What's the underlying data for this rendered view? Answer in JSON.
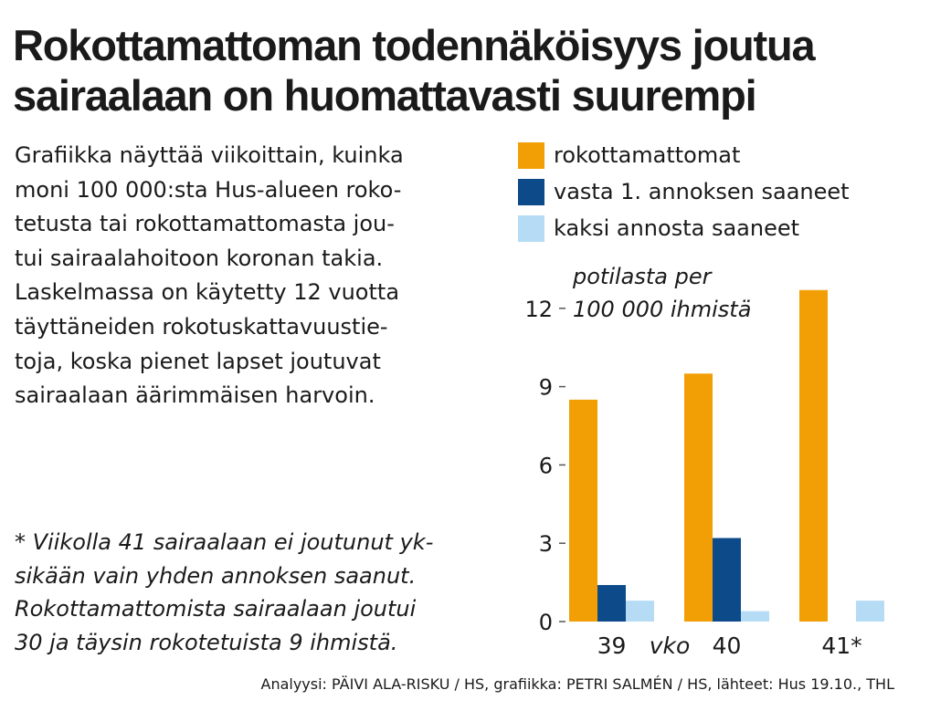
{
  "title_lines": [
    "Rokottamattoman todennäköisyys joutua",
    "sairaalaan on huomattavasti suurempi"
  ],
  "description_lines": [
    "Grafiikka näyttää viikoittain, kuinka",
    "moni 100 000:sta Hus-alueen roko-",
    "tetusta tai rokottamattomasta jou-",
    "tui sairaalahoitoon koronan takia.",
    "Laskelmassa on käytetty 12 vuotta",
    "täyttäneiden rokotuskattavuustie-",
    "toja, koska pienet lapset joutuvat",
    "sairaalaan äärimmäisen harvoin."
  ],
  "note_lines": [
    "* Viikolla 41 sairaalaan ei joutunut yk-",
    "sikään vain yhden annoksen saanut.",
    "Rokottamattomista sairaalaan joutui",
    "30 ja täysin rokotetuista 9 ihmistä."
  ],
  "credit": "Analyysi: PÄIVI ALA-RISKU / HS, grafiikka: PETRI SALMÉN / HS, lähteet: Hus 19.10., THL",
  "chart_data": {
    "type": "bar",
    "categories": [
      "39",
      "40",
      "41*"
    ],
    "xlabel": "vko",
    "ylabel_lines": [
      "potilasta per",
      "100 000 ihmistä"
    ],
    "ylim": [
      0,
      13
    ],
    "yticks": [
      0,
      3,
      6,
      9,
      12
    ],
    "legend_position": "top",
    "series": [
      {
        "name": "rokottamattomat",
        "color": "#f29f05",
        "values": [
          8.5,
          9.5,
          12.7
        ]
      },
      {
        "name": "vasta 1. annoksen saaneet",
        "color": "#0d4a8a",
        "values": [
          1.4,
          3.2,
          0
        ]
      },
      {
        "name": "kaksi annosta saaneet",
        "color": "#b6dcf5",
        "values": [
          0.8,
          0.4,
          0.8
        ]
      }
    ]
  }
}
